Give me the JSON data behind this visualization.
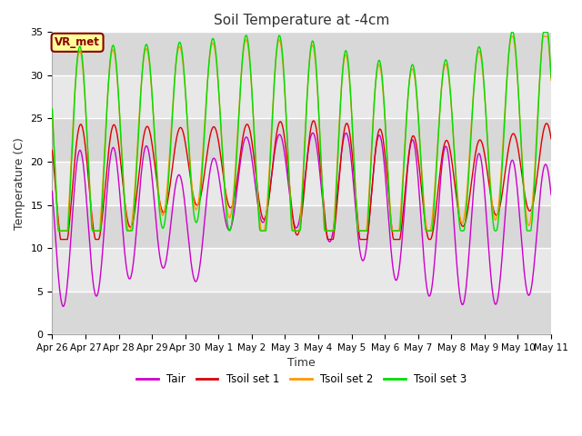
{
  "title": "Soil Temperature at -4cm",
  "xlabel": "Time",
  "ylabel": "Temperature (C)",
  "ylim": [
    0,
    35
  ],
  "tick_labels": [
    "Apr 26",
    "Apr 27",
    "Apr 28",
    "Apr 29",
    "Apr 30",
    "May 1",
    "May 2",
    "May 3",
    "May 4",
    "May 5",
    "May 6",
    "May 7",
    "May 8",
    "May 9",
    "May 10",
    "May 11"
  ],
  "legend_labels": [
    "Tair",
    "Tsoil set 1",
    "Tsoil set 2",
    "Tsoil set 3"
  ],
  "colors": {
    "Tair": "#cc00cc",
    "Tsoil1": "#dd0000",
    "Tsoil2": "#ff9900",
    "Tsoil3": "#00dd00"
  },
  "fig_bg": "#ffffff",
  "axes_bg": "#e8e8e8",
  "band_colors": [
    "#e0e0e0",
    "#d0d0d0"
  ],
  "annotation_text": "VR_met",
  "annotation_bg": "#ffff99",
  "annotation_border": "#880000"
}
